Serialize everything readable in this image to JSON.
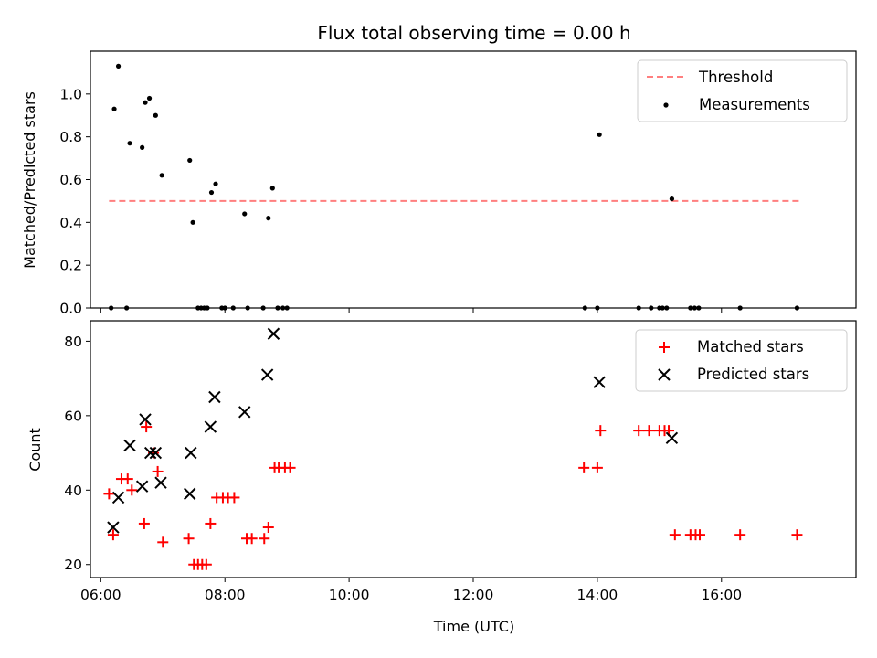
{
  "title": "Flux total observing time = 0.00 h",
  "chart_data": [
    {
      "type": "scatter",
      "title": "Flux total observing time = 0.00 h",
      "xlabel": "",
      "ylabel": "Matched/Predicted stars",
      "xlim": [
        "05:50",
        "18:10"
      ],
      "ylim": [
        0,
        1.2
      ],
      "yticks": [
        "0.0",
        "0.2",
        "0.4",
        "0.6",
        "0.8",
        "1.0"
      ],
      "legend": "top-right",
      "grid": false,
      "threshold": {
        "name": "Threshold",
        "y": 0.5,
        "x_from": "06:08",
        "x_to": "17:15",
        "color": "#ff7f7f",
        "style": "dashed"
      },
      "series": [
        {
          "name": "Measurements",
          "color": "#000000",
          "marker": "dot",
          "points": [
            [
              "06:10",
              0.0
            ],
            [
              "06:13",
              0.93
            ],
            [
              "06:17",
              1.13
            ],
            [
              "06:25",
              0.0
            ],
            [
              "06:28",
              0.77
            ],
            [
              "06:40",
              0.75
            ],
            [
              "06:43",
              0.96
            ],
            [
              "06:47",
              0.98
            ],
            [
              "06:53",
              0.9
            ],
            [
              "06:59",
              0.62
            ],
            [
              "07:26",
              0.69
            ],
            [
              "07:29",
              0.4
            ],
            [
              "07:34",
              0.0
            ],
            [
              "07:37",
              0.0
            ],
            [
              "07:40",
              0.0
            ],
            [
              "07:43",
              0.0
            ],
            [
              "07:47",
              0.54
            ],
            [
              "07:51",
              0.58
            ],
            [
              "07:57",
              0.0
            ],
            [
              "08:00",
              0.0
            ],
            [
              "08:08",
              0.0
            ],
            [
              "08:19",
              0.44
            ],
            [
              "08:22",
              0.0
            ],
            [
              "08:37",
              0.0
            ],
            [
              "08:42",
              0.42
            ],
            [
              "08:46",
              0.56
            ],
            [
              "08:51",
              0.0
            ],
            [
              "08:56",
              0.0
            ],
            [
              "09:00",
              0.0
            ],
            [
              "13:48",
              0.0
            ],
            [
              "14:00",
              0.0
            ],
            [
              "14:02",
              0.81
            ],
            [
              "14:40",
              0.0
            ],
            [
              "14:52",
              0.0
            ],
            [
              "15:00",
              0.0
            ],
            [
              "15:03",
              0.0
            ],
            [
              "15:07",
              0.0
            ],
            [
              "15:12",
              0.51
            ],
            [
              "15:30",
              0.0
            ],
            [
              "15:34",
              0.0
            ],
            [
              "15:38",
              0.0
            ],
            [
              "16:18",
              0.0
            ],
            [
              "17:13",
              0.0
            ]
          ]
        }
      ]
    },
    {
      "type": "scatter",
      "title": "",
      "xlabel": "Time (UTC)",
      "ylabel": "Count",
      "xlim": [
        "05:50",
        "18:10"
      ],
      "ylim": [
        16.5,
        85.5
      ],
      "xticks": [
        "06:00",
        "08:00",
        "10:00",
        "12:00",
        "14:00",
        "16:00"
      ],
      "yticks": [
        "20",
        "40",
        "60",
        "80"
      ],
      "legend": "top-right",
      "grid": false,
      "series": [
        {
          "name": "Matched stars",
          "color": "#ff0000",
          "marker": "plus",
          "points": [
            [
              "06:08",
              39
            ],
            [
              "06:12",
              28
            ],
            [
              "06:20",
              43
            ],
            [
              "06:26",
              43
            ],
            [
              "06:30",
              40
            ],
            [
              "06:42",
              31
            ],
            [
              "06:44",
              57
            ],
            [
              "06:51",
              50
            ],
            [
              "06:55",
              45
            ],
            [
              "07:00",
              26
            ],
            [
              "07:25",
              27
            ],
            [
              "07:30",
              20
            ],
            [
              "07:34",
              20
            ],
            [
              "07:38",
              20
            ],
            [
              "07:42",
              20
            ],
            [
              "07:46",
              31
            ],
            [
              "07:52",
              38
            ],
            [
              "07:58",
              38
            ],
            [
              "08:03",
              38
            ],
            [
              "08:09",
              38
            ],
            [
              "08:21",
              27
            ],
            [
              "08:26",
              27
            ],
            [
              "08:38",
              27
            ],
            [
              "08:42",
              30
            ],
            [
              "08:48",
              46
            ],
            [
              "08:52",
              46
            ],
            [
              "08:58",
              46
            ],
            [
              "09:03",
              46
            ],
            [
              "13:47",
              46
            ],
            [
              "14:00",
              46
            ],
            [
              "14:03",
              56
            ],
            [
              "14:40",
              56
            ],
            [
              "14:50",
              56
            ],
            [
              "15:00",
              56
            ],
            [
              "15:05",
              56
            ],
            [
              "15:09",
              56
            ],
            [
              "15:15",
              28
            ],
            [
              "15:30",
              28
            ],
            [
              "15:35",
              28
            ],
            [
              "15:39",
              28
            ],
            [
              "16:18",
              28
            ],
            [
              "17:13",
              28
            ]
          ]
        },
        {
          "name": "Predicted stars",
          "color": "#000000",
          "marker": "x",
          "points": [
            [
              "06:12",
              30
            ],
            [
              "06:17",
              38
            ],
            [
              "06:28",
              52
            ],
            [
              "06:40",
              41
            ],
            [
              "06:43",
              59
            ],
            [
              "06:48",
              50
            ],
            [
              "06:53",
              50
            ],
            [
              "06:58",
              42
            ],
            [
              "07:27",
              50
            ],
            [
              "07:26",
              39
            ],
            [
              "07:46",
              57
            ],
            [
              "07:50",
              65
            ],
            [
              "08:19",
              61
            ],
            [
              "08:41",
              71
            ],
            [
              "08:47",
              82
            ],
            [
              "14:02",
              69
            ],
            [
              "15:12",
              54
            ]
          ]
        }
      ]
    }
  ]
}
